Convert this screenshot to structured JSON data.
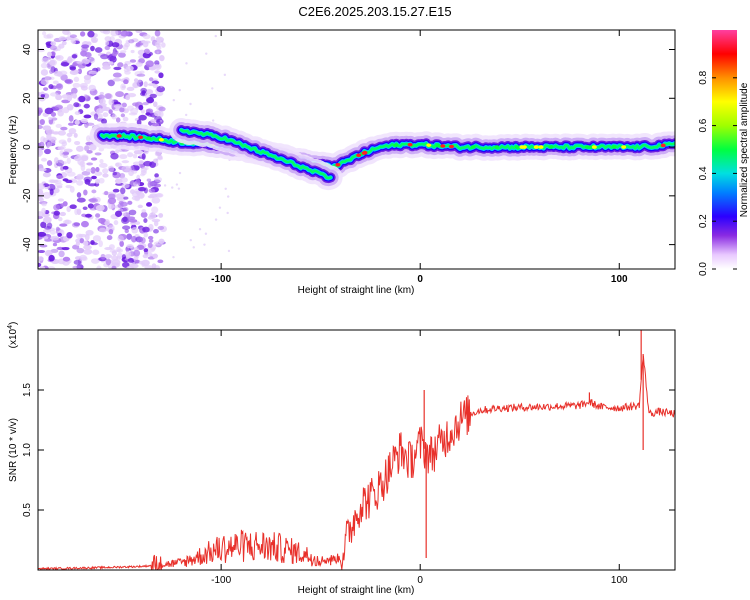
{
  "title": "C2E6.2025.203.15.27.E15",
  "chart_data": [
    {
      "type": "heatmap",
      "xlabel": "Height of straight line (km)",
      "ylabel": "Frequency (Hz)",
      "xlim": [
        -192,
        128
      ],
      "ylim": [
        -50,
        48
      ],
      "xticks": [
        -100,
        0,
        100
      ],
      "yticks": [
        -40,
        -20,
        0,
        20,
        40
      ],
      "colorbar": {
        "label": "Normalized spectral amplitude",
        "range": [
          0,
          1
        ],
        "ticks": [
          0.0,
          0.2,
          0.4,
          0.6,
          0.8
        ]
      },
      "ridge": {
        "x": [
          -160,
          -140,
          -120,
          -100,
          -80,
          -60,
          -45,
          -40,
          -30,
          -20,
          -10,
          0,
          20,
          50,
          80,
          110,
          128
        ],
        "y": [
          5,
          4,
          2,
          1,
          -2,
          -6,
          -8,
          -7,
          -3,
          0,
          1,
          1,
          0,
          0,
          0,
          0,
          1
        ]
      },
      "secondary_ridge": {
        "x": [
          -120,
          -100,
          -80,
          -60,
          -45
        ],
        "y": [
          7,
          4,
          -2,
          -8,
          -13
        ]
      },
      "noise_region_x": [
        -192,
        -135
      ]
    },
    {
      "type": "line",
      "xlabel": "Height of straight line (km)",
      "ylabel": "SNR (10 * v/v)",
      "multiplier": "(x10",
      "multiplier_exp": "4",
      "xlim": [
        -192,
        128
      ],
      "ylim": [
        0,
        2.0
      ],
      "xticks": [
        -100,
        0,
        100
      ],
      "yticks": [
        0.5,
        1.0,
        1.5
      ],
      "series": [
        {
          "color": "#e8302a",
          "x": [
            -192,
            -160,
            -140,
            -120,
            -110,
            -100,
            -90,
            -80,
            -70,
            -60,
            -50,
            -40,
            -35,
            -30,
            -25,
            -20,
            -15,
            -10,
            -5,
            0,
            5,
            10,
            15,
            20,
            25,
            30,
            40,
            60,
            80,
            85,
            90,
            100,
            110,
            112,
            115,
            120,
            128
          ],
          "y": [
            0.01,
            0.02,
            0.03,
            0.06,
            0.12,
            0.18,
            0.2,
            0.2,
            0.18,
            0.14,
            0.08,
            0.1,
            0.35,
            0.55,
            0.6,
            0.7,
            0.85,
            1.0,
            0.9,
            1.05,
            0.95,
            1.05,
            1.15,
            1.25,
            1.3,
            1.33,
            1.35,
            1.36,
            1.37,
            1.4,
            1.36,
            1.35,
            1.37,
            1.8,
            1.3,
            1.32,
            1.3
          ]
        }
      ],
      "spikes": [
        {
          "x": 2,
          "y": 1.5
        },
        {
          "x": 3,
          "y": 0.1
        },
        {
          "x": -45,
          "y": 0.04
        },
        {
          "x": 111,
          "y": 2.0
        },
        {
          "x": 112,
          "y": 1.0
        },
        {
          "x": 85,
          "y": 1.48
        }
      ]
    }
  ]
}
